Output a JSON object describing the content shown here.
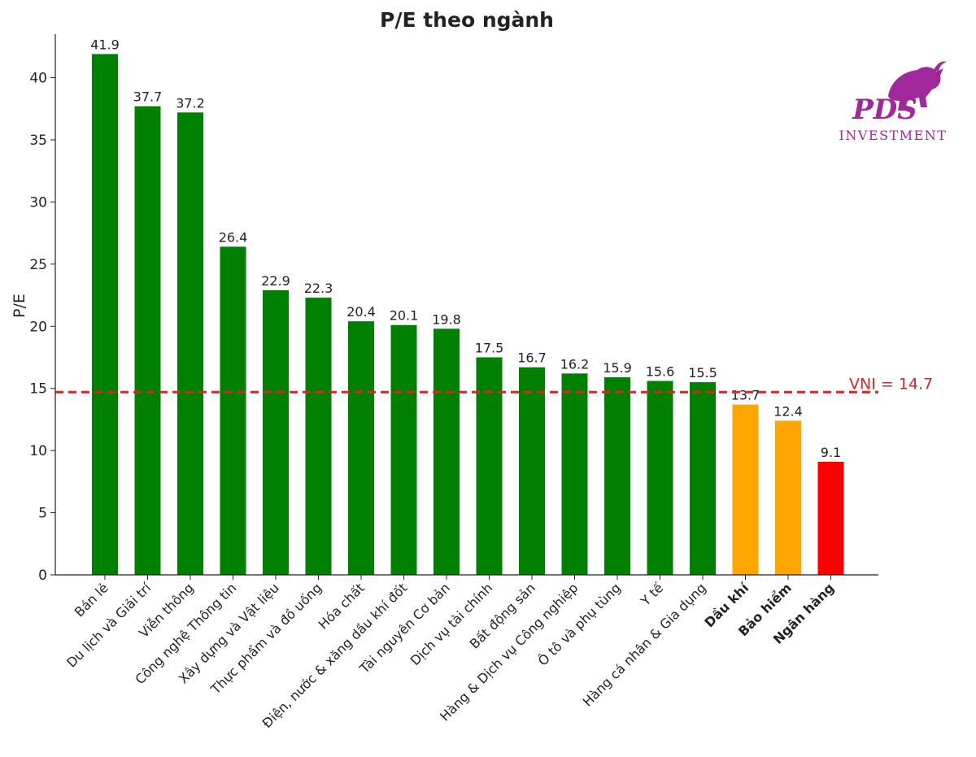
{
  "chart_data": {
    "type": "bar",
    "title": "P/E theo ngành",
    "xlabel": "",
    "ylabel": "P/E",
    "ylim": [
      0,
      43.5
    ],
    "yticks": [
      0,
      5,
      10,
      15,
      20,
      25,
      30,
      35,
      40
    ],
    "grid": false,
    "categories": [
      "Bán lẻ",
      "Du lịch và Giải trí",
      "Viễn thông",
      "Công nghệ Thông tin",
      "Xây dựng và Vật liệu",
      "Thực phẩm và đồ uống",
      "Hóa chất",
      "Điện, nước & xăng dầu khí đốt",
      "Tài nguyên Cơ bản",
      "Dịch vụ tài chính",
      "Bất động sản",
      "Hàng & Dịch vụ Công nghiệp",
      "Ô tô và phụ tùng",
      "Y tế",
      "Hàng cá nhân & Gia dụng",
      "Dầu khí",
      "Bảo hiểm",
      "Ngân hàng"
    ],
    "values": [
      41.9,
      37.7,
      37.2,
      26.4,
      22.9,
      22.3,
      20.4,
      20.1,
      19.8,
      17.5,
      16.7,
      16.2,
      15.9,
      15.6,
      15.5,
      13.7,
      12.4,
      9.1
    ],
    "value_labels": [
      "41.9",
      "37.7",
      "37.2",
      "26.4",
      "22.9",
      "22.3",
      "20.4",
      "20.1",
      "19.8",
      "17.5",
      "16.7",
      "16.2",
      "15.9",
      "15.6",
      "15.5",
      "13.7",
      "12.4",
      "9.1"
    ],
    "bar_colors": [
      "#008000",
      "#008000",
      "#008000",
      "#008000",
      "#008000",
      "#008000",
      "#008000",
      "#008000",
      "#008000",
      "#008000",
      "#008000",
      "#008000",
      "#008000",
      "#008000",
      "#008000",
      "#FFA500",
      "#FFA500",
      "#FF0000"
    ],
    "bold_categories": [
      "Dầu khí",
      "Bảo hiểm",
      "Ngân hàng"
    ],
    "reference_line": {
      "value": 14.7,
      "label": "VNI = 14.7",
      "color": "#D62728",
      "style": "dashed"
    }
  },
  "logo": {
    "brand": "PDS",
    "subtitle": "INVESTMENT",
    "color": "#A0289B",
    "icon": "bull-icon"
  }
}
